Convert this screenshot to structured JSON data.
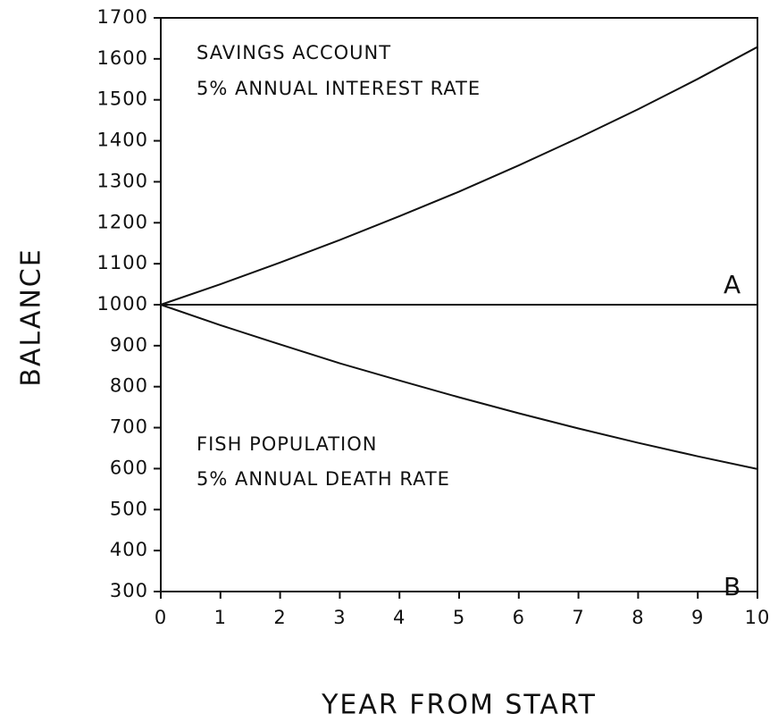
{
  "chart_data": {
    "type": "line",
    "x_label": "YEAR FROM START",
    "y_label": "BALANCE",
    "x": [
      0,
      1,
      2,
      3,
      4,
      5,
      6,
      7,
      8,
      9,
      10
    ],
    "series": [
      {
        "name": "SAVINGS ACCOUNT",
        "description": "5% ANNUAL INTEREST RATE",
        "tag": "A",
        "color": "#111111",
        "values": [
          1000,
          1050,
          1103,
          1158,
          1216,
          1276,
          1340,
          1407,
          1477,
          1551,
          1629
        ]
      },
      {
        "name": "FISH POPULATION",
        "description": "5% ANNUAL DEATH RATE",
        "tag": "B",
        "color": "#111111",
        "values": [
          1000,
          950,
          903,
          857,
          815,
          774,
          735,
          698,
          663,
          630,
          599
        ]
      }
    ],
    "reference_line": 1000,
    "xlim": [
      0,
      10
    ],
    "xticks": [
      0,
      1,
      2,
      3,
      4,
      5,
      6,
      7,
      8,
      9,
      10
    ],
    "ylim": [
      300,
      1700
    ],
    "yticks": [
      300,
      400,
      500,
      600,
      700,
      800,
      900,
      1000,
      1100,
      1200,
      1300,
      1400,
      1500,
      1600,
      1700
    ],
    "grid": false
  }
}
